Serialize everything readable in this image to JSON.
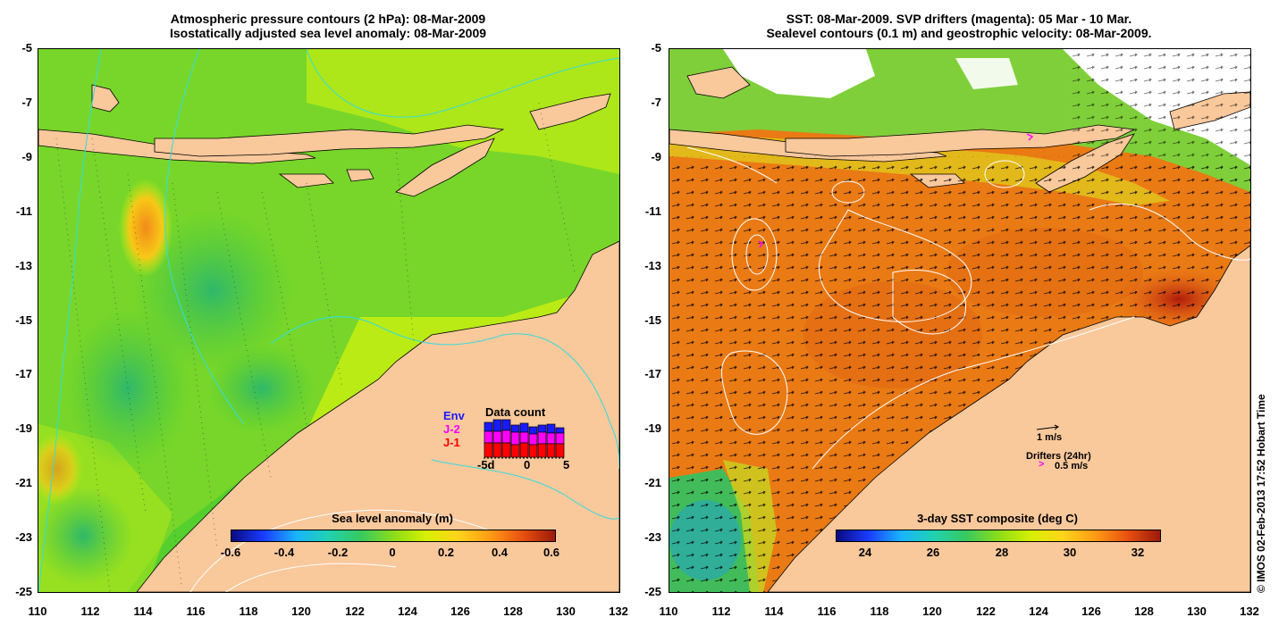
{
  "left_panel": {
    "title_line1": "Atmospheric pressure contours (2 hPa): 08-Mar-2009",
    "title_line2": "Isostatically adjusted sea level anomaly: 08-Mar-2009",
    "x_ticks": [
      "110",
      "112",
      "114",
      "116",
      "118",
      "120",
      "122",
      "124",
      "126",
      "128",
      "130",
      "132"
    ],
    "y_ticks": [
      "-5",
      "-7",
      "-9",
      "-11",
      "-13",
      "-15",
      "-17",
      "-19",
      "-21",
      "-23",
      "-25"
    ],
    "colorbar": {
      "title": "Sea level anomaly (m)",
      "labels": [
        "-0.6",
        "-0.4",
        "-0.2",
        "0",
        "0.2",
        "0.4",
        "0.6"
      ],
      "range": [
        -0.6,
        0.6
      ]
    },
    "data_count": {
      "title": "Data count",
      "legend": [
        "Env",
        "J-2",
        "J-1"
      ],
      "legend_colors": [
        "#1a1aff",
        "#ff00ff",
        "#ff0000"
      ],
      "axis_labels": [
        "-5d",
        "0",
        "5"
      ]
    }
  },
  "right_panel": {
    "title_line1": "SST: 08-Mar-2009. SVP drifters (magenta): 05 Mar - 10 Mar.",
    "title_line2": "Sealevel contours (0.1 m) and geostrophic velocity: 08-Mar-2009.",
    "x_ticks": [
      "110",
      "112",
      "114",
      "116",
      "118",
      "120",
      "122",
      "124",
      "126",
      "128",
      "130",
      "132"
    ],
    "y_ticks": [
      "-5",
      "-7",
      "-9",
      "-11",
      "-13",
      "-15",
      "-17",
      "-19",
      "-21",
      "-23",
      "-25"
    ],
    "colorbar": {
      "title": "3-day SST composite (deg C)",
      "labels": [
        "24",
        "26",
        "28",
        "30",
        "32"
      ],
      "range": [
        23,
        32.5
      ]
    },
    "velocity_scale_label": "1 m/s",
    "drifters_label": "Drifters (24hr)",
    "drifter_speed_label": "0.5 m/s"
  },
  "credit": "© IMOS 02-Feb-2013 17:52 Hobart Time",
  "colors": {
    "land": "#f9c89b",
    "sea_green": "#4ccc3a",
    "sea_yellow": "#c8f000",
    "sst_orange": "#e66a0c",
    "contour_cyan": "#33dddd"
  }
}
